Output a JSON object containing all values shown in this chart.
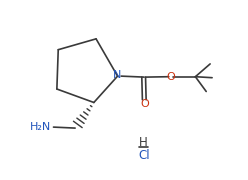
{
  "bg_color": "#ffffff",
  "line_color": "#3a3a3a",
  "text_color": "#3a3a3a",
  "atom_colors": {
    "N": "#2255bb",
    "O": "#cc3311",
    "H2N": "#2255bb",
    "H": "#3a3a3a",
    "Cl": "#2255bb"
  },
  "figsize": [
    2.48,
    1.8
  ],
  "dpi": 100
}
